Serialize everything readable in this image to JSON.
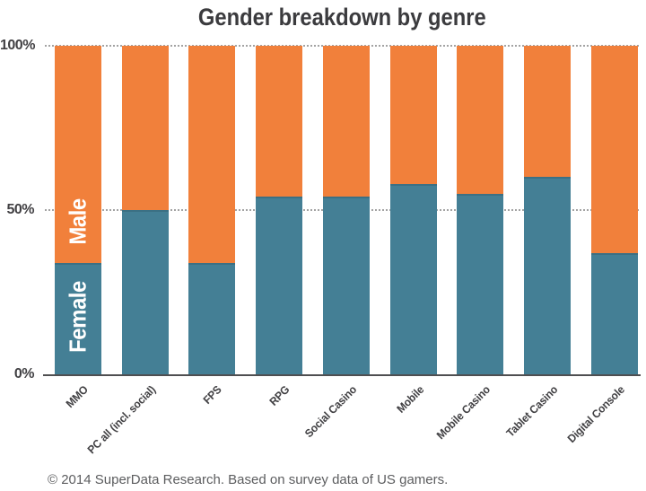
{
  "chart_data": {
    "type": "bar",
    "stacked": true,
    "title": "Gender breakdown by genre",
    "categories": [
      "MMO",
      "PC all (incl. social)",
      "FPS",
      "RPG",
      "Social Casino",
      "Mobile",
      "Mobile Casino",
      "Tablet Casino",
      "Digital Console"
    ],
    "series": [
      {
        "name": "Female",
        "color": "#447f95",
        "values": [
          34,
          50,
          34,
          54,
          54,
          58,
          55,
          60,
          37
        ]
      },
      {
        "name": "Male",
        "color": "#f1803b",
        "values": [
          66,
          50,
          66,
          46,
          46,
          42,
          45,
          40,
          63
        ]
      }
    ],
    "ylim": [
      0,
      100
    ],
    "yticks": [
      {
        "label": "0%",
        "value": 0
      },
      {
        "label": "50%",
        "value": 50
      },
      {
        "label": "100%",
        "value": 100
      }
    ],
    "gridlines": [
      50,
      100
    ],
    "grid_style": "dotted",
    "legend_position": "inside-first-bar",
    "xlabel": "",
    "ylabel": ""
  },
  "footer": {
    "text": "© 2014 SuperData Research. Based on survey data of US gamers."
  },
  "colors": {
    "male": "#f1803b",
    "female": "#447f95",
    "female_edge": "#3b7084",
    "grid": "#a3a3a3",
    "axis": "#4f4f51",
    "title_text": "#3b3b3e",
    "label_text": "#414043",
    "footer_text": "#5c5d5f",
    "background": "#ffffff"
  }
}
